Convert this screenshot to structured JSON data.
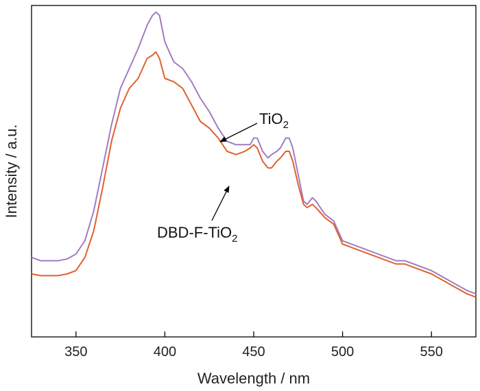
{
  "chart_data": {
    "type": "line",
    "title": "",
    "xlabel": "Wavelength / nm",
    "ylabel": "Intensity / a.u.",
    "xlim": [
      325,
      575
    ],
    "ylim": [
      0,
      100
    ],
    "x_ticks": [
      350,
      400,
      450,
      500,
      550
    ],
    "y_ticks": [],
    "grid": false,
    "legend": "none",
    "series": [
      {
        "color": "#a07cc0",
        "x": [
          325,
          330,
          340,
          345,
          350,
          355,
          360,
          365,
          370,
          375,
          380,
          385,
          390,
          393,
          395,
          397,
          400,
          405,
          410,
          415,
          420,
          425,
          430,
          435,
          440,
          445,
          448,
          450,
          452,
          455,
          458,
          460,
          463,
          465,
          468,
          470,
          472,
          475,
          478,
          480,
          483,
          485,
          490,
          495,
          500,
          505,
          510,
          520,
          530,
          535,
          540,
          550,
          560,
          570,
          575
        ],
        "y": [
          24,
          23,
          23,
          23.5,
          25,
          29,
          38,
          51,
          64,
          75,
          81,
          87,
          94,
          97,
          98,
          97,
          89,
          83,
          81,
          77,
          72,
          68,
          63,
          59,
          58,
          58,
          58,
          60,
          60,
          56,
          54,
          55,
          56,
          57,
          60,
          60,
          57,
          49,
          41,
          40,
          42,
          41,
          37,
          35,
          29,
          28,
          27,
          25,
          23,
          23,
          22,
          20,
          17,
          14,
          13
        ]
      },
      {
        "color": "#e0602c",
        "x": [
          325,
          330,
          340,
          345,
          350,
          355,
          360,
          365,
          370,
          375,
          380,
          385,
          390,
          393,
          395,
          397,
          400,
          405,
          410,
          415,
          420,
          425,
          430,
          435,
          440,
          445,
          448,
          450,
          452,
          455,
          458,
          460,
          463,
          465,
          468,
          470,
          472,
          475,
          478,
          480,
          483,
          485,
          490,
          495,
          500,
          505,
          510,
          520,
          530,
          535,
          540,
          550,
          560,
          570,
          575
        ],
        "y": [
          19,
          18.5,
          18.5,
          19,
          20,
          24,
          32,
          45,
          59,
          69,
          75,
          78,
          84,
          85,
          86,
          84,
          78,
          77,
          75,
          70,
          65,
          63,
          60,
          56,
          55,
          56,
          57,
          58,
          57,
          53,
          51,
          51,
          53,
          54,
          56,
          56,
          53,
          46,
          40,
          39,
          40,
          39,
          36,
          34,
          28,
          27,
          26,
          24,
          22,
          22,
          21,
          19,
          16,
          13,
          12
        ]
      }
    ],
    "annotations": [
      {
        "label": "TiO",
        "sub": "2",
        "target_x": 433,
        "target_y": 63
      },
      {
        "label": "DBD-F-TiO",
        "sub": "2",
        "target_x": 435,
        "target_y": 56
      }
    ]
  }
}
